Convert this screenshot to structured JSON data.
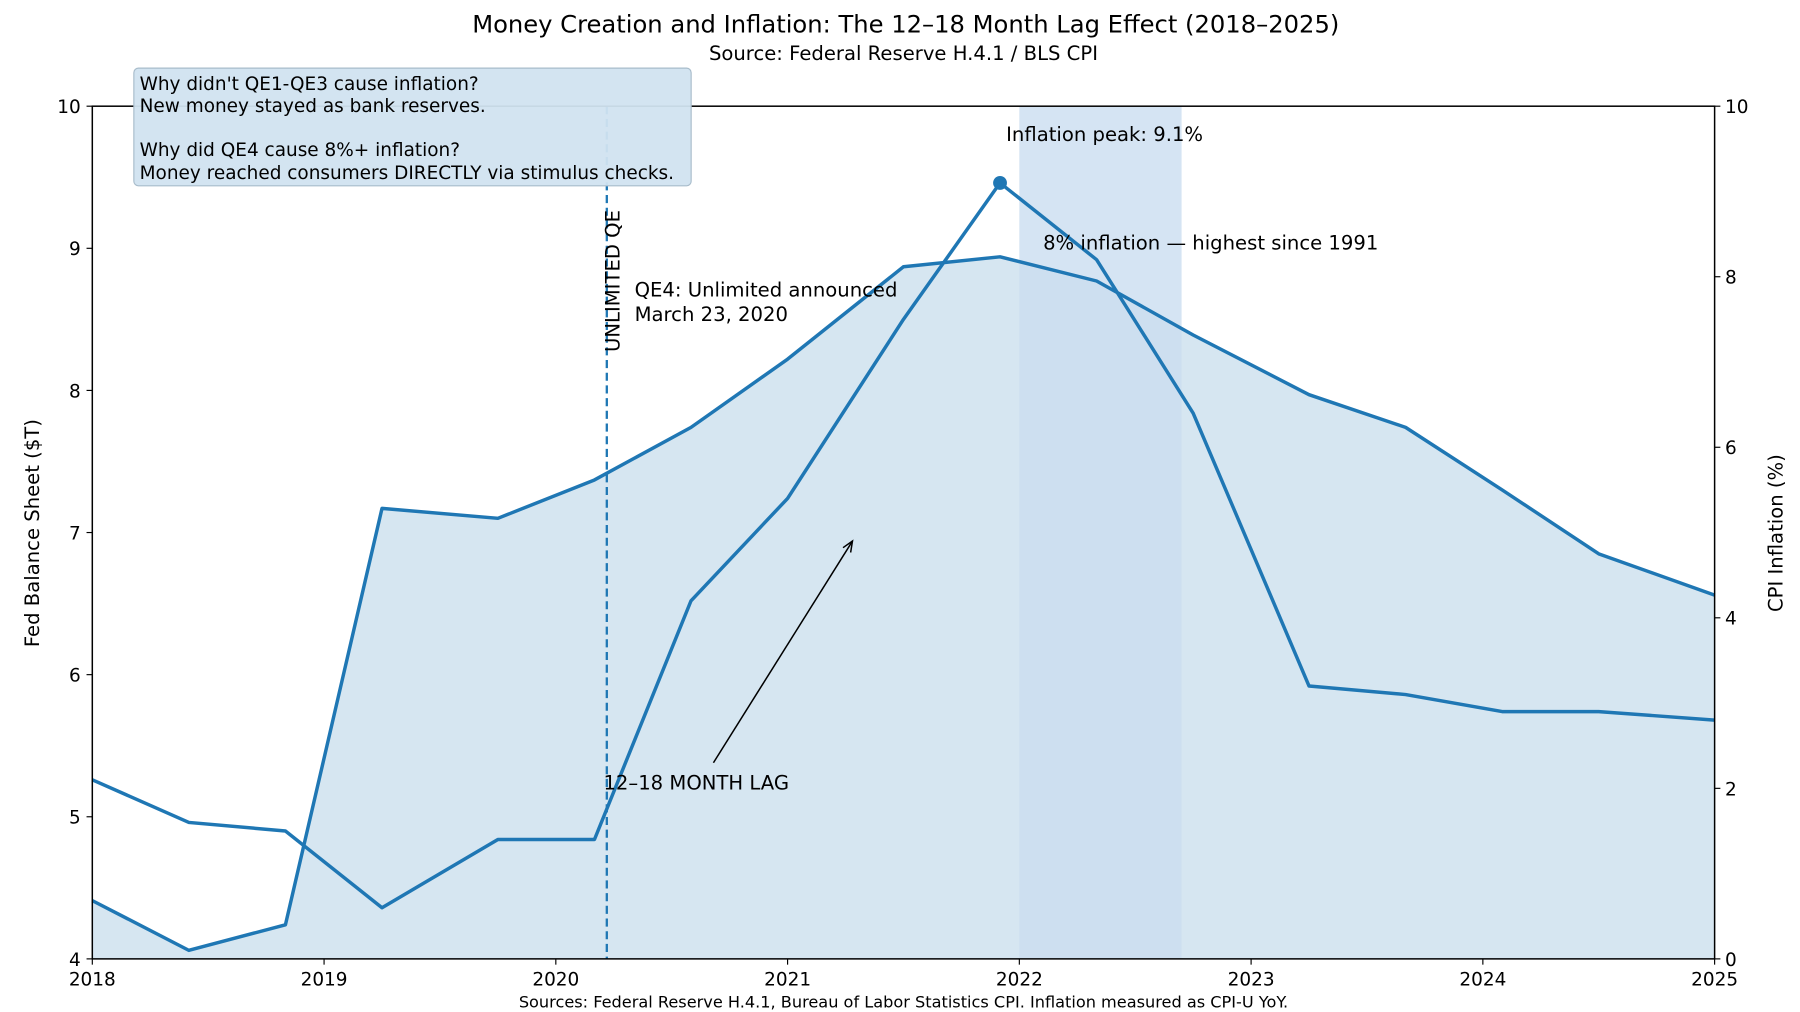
{
  "chart_data": {
    "type": "line",
    "title": "Money Creation and Inflation: The 12–18 Month Lag Effect (2018–2025)",
    "subtitle": "Source: Federal Reserve H.4.1 / BLS CPI",
    "footer": "Sources: Federal Reserve H.4.1, Bureau of Labor Statistics CPI. Inflation measured as CPI-U YoY.",
    "xlabel": "",
    "ylabel_left": "Fed Balance Sheet ($T)",
    "ylabel_right": "CPI Inflation (%)",
    "xlim": [
      2018,
      2025
    ],
    "ylim_left": [
      4,
      10
    ],
    "ylim_right": [
      0,
      10
    ],
    "x_ticks": [
      "2018",
      "2019",
      "2020",
      "2021",
      "2022",
      "2023",
      "2024",
      "2025"
    ],
    "y_left_ticks": [
      "4",
      "5",
      "6",
      "7",
      "8",
      "9",
      "10"
    ],
    "y_right_ticks": [
      "0",
      "2",
      "4",
      "6",
      "8",
      "10"
    ],
    "grid": false,
    "x": [
      "2018-01",
      "2018-06",
      "2018-11",
      "2019-04",
      "2019-10",
      "2020-03",
      "2020-08",
      "2021-01",
      "2021-07",
      "2021-12",
      "2022-05",
      "2022-10",
      "2023-04",
      "2023-09",
      "2024-02",
      "2024-07",
      "2025-01"
    ],
    "series": [
      {
        "axis": "left",
        "filled": true,
        "color": "#1f77b4",
        "values": [
          4.41,
          4.06,
          4.24,
          7.17,
          7.1,
          7.37,
          7.74,
          8.22,
          8.87,
          8.94,
          8.77,
          8.39,
          7.97,
          7.74,
          7.3,
          6.85,
          6.56
        ]
      },
      {
        "axis": "right",
        "filled": false,
        "color": "#1f77b4",
        "values": [
          2.1,
          1.6,
          1.5,
          0.6,
          1.4,
          1.4,
          4.2,
          5.4,
          7.5,
          9.1,
          8.2,
          6.4,
          3.2,
          3.1,
          2.9,
          2.9,
          2.8
        ]
      }
    ],
    "fill_color": "#d1e3f0",
    "highlight_span": {
      "from": 2022.0,
      "to": 2022.7,
      "color": "#c6dbef"
    },
    "vline": {
      "x": 2020.22,
      "label": "UNLIMITED QE"
    },
    "peak_marker": {
      "x": "2021-12",
      "value": 9.1,
      "label": "Inflation peak: 9.1%"
    },
    "annotations": {
      "qe4": [
        "QE4: Unlimited announced",
        "March 23, 2020"
      ],
      "highest": "8% inflation — highest since 1991",
      "lag": {
        "text": "12–18 MONTH LAG",
        "from": [
          2020.68,
          2.3
        ],
        "to": [
          2021.28,
          4.9
        ]
      }
    },
    "textbox": [
      "Why didn't QE1-QE3 cause inflation?",
      "New money stayed as bank reserves.",
      "",
      "Why did QE4 cause 8%+ inflation?",
      "Money reached consumers DIRECTLY via stimulus checks."
    ]
  }
}
